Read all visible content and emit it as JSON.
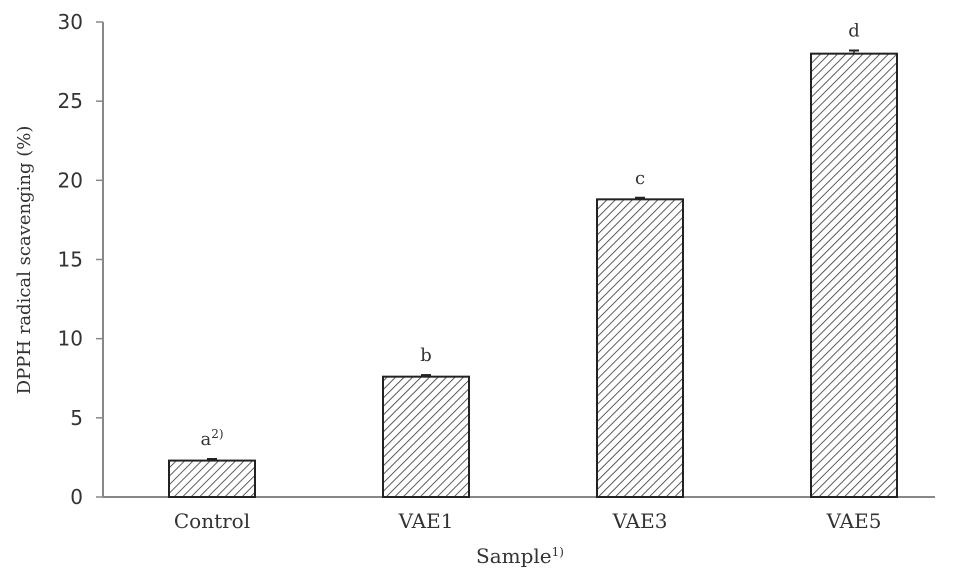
{
  "chart_data": {
    "type": "bar",
    "title": "",
    "xlabel": "Sample",
    "xlabel_superscript": "1)",
    "ylabel": "DPPH radical scavenging (%)",
    "ylim": [
      0,
      30
    ],
    "yticks": [
      0,
      5,
      10,
      15,
      20,
      25,
      30
    ],
    "categories": [
      "Control",
      "VAE1",
      "VAE3",
      "VAE5"
    ],
    "values": [
      2.3,
      7.6,
      18.8,
      28.0
    ],
    "errors": [
      0.1,
      0.1,
      0.1,
      0.2
    ],
    "annotations": [
      {
        "category": "Control",
        "text": "a",
        "superscript": "2)"
      },
      {
        "category": "VAE1",
        "text": "b",
        "superscript": ""
      },
      {
        "category": "VAE3",
        "text": "c",
        "superscript": ""
      },
      {
        "category": "VAE5",
        "text": "d",
        "superscript": ""
      }
    ],
    "grid": false,
    "legend": null,
    "bar_fill": "diagonal-hatch",
    "colors": {
      "bar_edge": "#222222",
      "hatch": "#333333",
      "axis": "#888888"
    }
  }
}
